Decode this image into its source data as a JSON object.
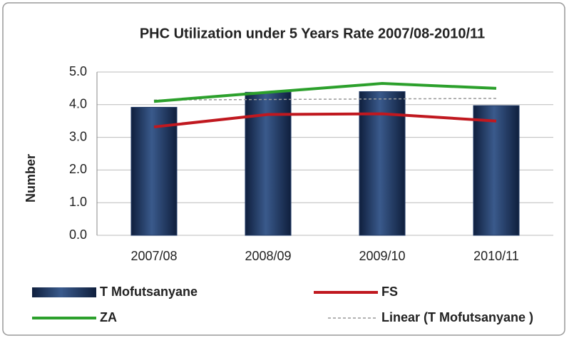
{
  "chart_data": {
    "type": "bar_line",
    "title": "PHC Utilization under 5 Years Rate 2007/08-2010/11",
    "y_label": "Number",
    "categories": [
      "2007/08",
      "2008/09",
      "2009/10",
      "2010/11"
    ],
    "series": [
      {
        "name": "T Mofutsanyane",
        "kind": "bar",
        "color": "#1f3864",
        "values": [
          3.92,
          4.38,
          4.4,
          3.97
        ]
      },
      {
        "name": "FS",
        "kind": "line",
        "color": "#c0181f",
        "values": [
          3.32,
          3.7,
          3.72,
          3.5
        ]
      },
      {
        "name": "ZA",
        "kind": "line",
        "color": "#2ca02c",
        "values": [
          4.1,
          4.38,
          4.65,
          4.5
        ]
      }
    ],
    "trendline": {
      "name": "Linear (T Mofutsanyane )",
      "series": 0,
      "color": "#999999"
    },
    "ylim": [
      0,
      5
    ],
    "yticks": [
      {
        "value": 0,
        "label": "0.0"
      },
      {
        "value": 1,
        "label": "1.0"
      },
      {
        "value": 2,
        "label": "2.0"
      },
      {
        "value": 3,
        "label": "3.0"
      },
      {
        "value": 4,
        "label": "4.0"
      },
      {
        "value": 5,
        "label": "5.0"
      }
    ],
    "grid": true
  }
}
